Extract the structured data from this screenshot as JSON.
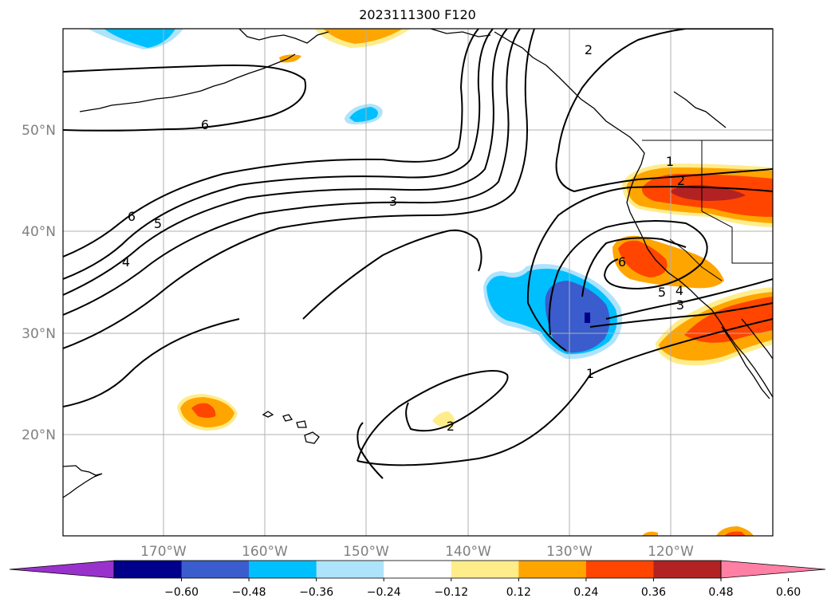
{
  "title": "2023111300 F120",
  "lat_labels": [
    "50°N",
    "40°N",
    "30°N",
    "20°N"
  ],
  "lon_labels": [
    "170°W",
    "160°W",
    "150°W",
    "140°W",
    "130°W",
    "120°W"
  ],
  "colorbar": {
    "colors": [
      "#9932cc",
      "#00008b",
      "#3a5ccc",
      "#00bfff",
      "#aee3fc",
      "#ffffff",
      "#ffec8b",
      "#ffa500",
      "#ff4500",
      "#b22222",
      "#ff7fa5"
    ],
    "ticks": [
      "−0.60",
      "−0.48",
      "−0.36",
      "−0.24",
      "−0.12",
      "0.12",
      "0.24",
      "0.36",
      "0.48",
      "0.60"
    ]
  },
  "contour_labels": [
    "6",
    "6",
    "5",
    "4",
    "3",
    "2",
    "1",
    "2",
    "6",
    "5",
    "4",
    "3",
    "1",
    "2"
  ],
  "gridline_color": "#b0b0b0"
}
